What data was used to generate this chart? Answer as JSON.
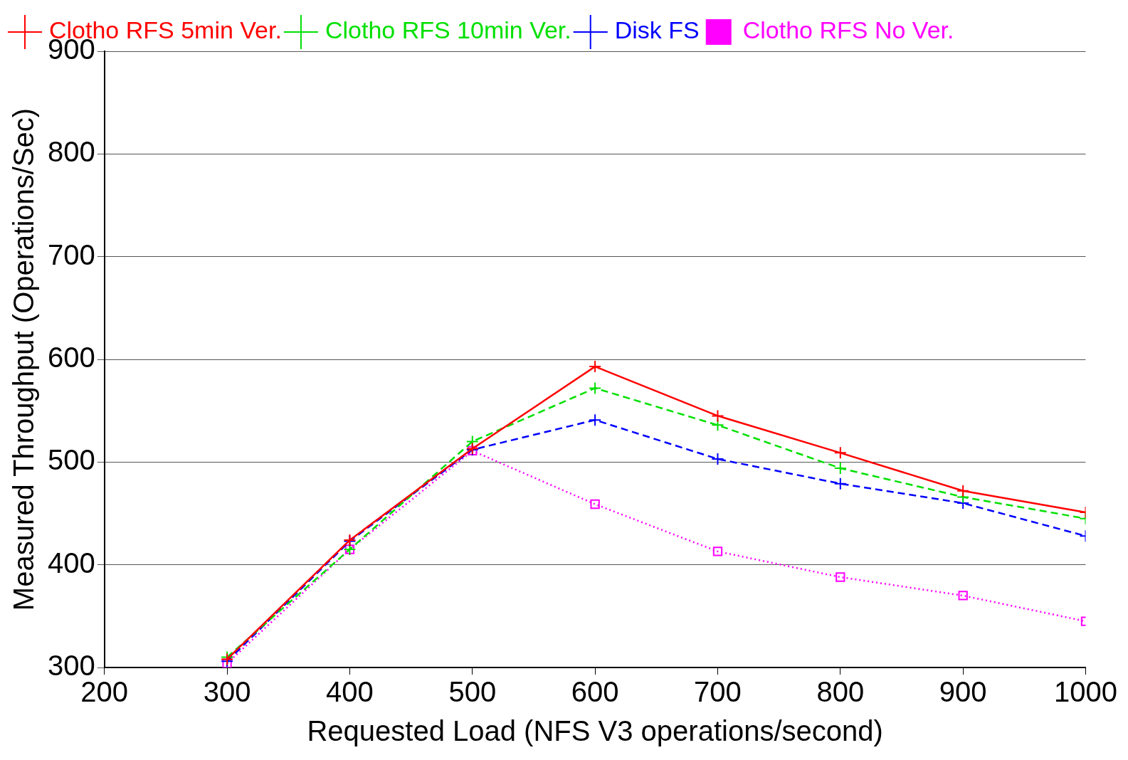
{
  "chart_data": {
    "type": "line",
    "xlabel": "Requested Load (NFS V3 operations/second)",
    "ylabel": "Measured Throughput (Operations/Sec)",
    "x": [
      300,
      400,
      500,
      600,
      700,
      800,
      900,
      1000
    ],
    "series": [
      {
        "name": "Clotho RFS 5min Ver.",
        "color": "#ff0000",
        "marker": "cross",
        "line_style": "solid",
        "values": [
          308,
          424,
          513,
          593,
          545,
          509,
          472,
          451
        ]
      },
      {
        "name": "Clotho RFS 10min Ver.",
        "color": "#00e000",
        "marker": "cross",
        "line_style": "dashed",
        "values": [
          310,
          415,
          520,
          572,
          536,
          494,
          466,
          445
        ]
      },
      {
        "name": "Disk FS",
        "color": "#0000ff",
        "marker": "cross",
        "line_style": "dashed",
        "values": [
          306,
          423,
          512,
          541,
          503,
          479,
          460,
          428
        ]
      },
      {
        "name": "Clotho RFS No Ver.",
        "color": "#ff00ff",
        "marker": "square",
        "line_style": "dotted",
        "values": [
          304,
          415,
          511,
          459,
          413,
          388,
          370,
          345
        ]
      }
    ],
    "xlim": [
      200,
      1000
    ],
    "xticks": [
      200,
      300,
      400,
      500,
      600,
      700,
      800,
      900,
      1000
    ],
    "ylim": [
      300,
      900
    ],
    "yticks": [
      300,
      400,
      500,
      600,
      700,
      800,
      900
    ],
    "grid": "y",
    "legend": "top left"
  }
}
